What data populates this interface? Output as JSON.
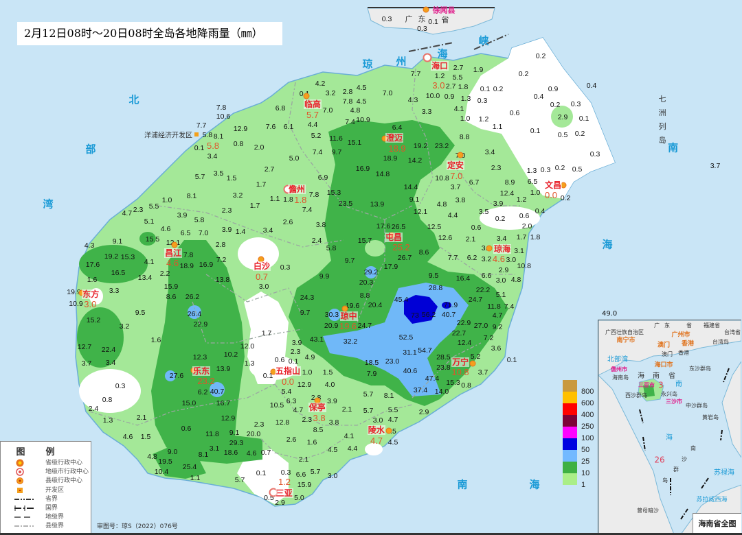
{
  "title": "2月12日08时～20日08时全岛各地降雨量（㎜）",
  "colors": {
    "sea": "#c9e5f6",
    "level_1_10": "#a4e898",
    "level_10_25": "#40b349",
    "level_25_50": "#70b8f8",
    "level_50_100": "#0000d6",
    "no_rain": "#ffffff"
  },
  "color_scale": {
    "labels": [
      "800",
      "600",
      "400",
      "250",
      "100",
      "50",
      "25",
      "10",
      "1"
    ],
    "colors": [
      "#c9993e",
      "#ffc000",
      "#ff0000",
      "#7d0038",
      "#ff00ff",
      "#0000e0",
      "#73b9ff",
      "#3eb043",
      "#aaee88"
    ]
  },
  "sea_labels": {
    "beibuwan": [
      "北",
      "部",
      "湾"
    ],
    "qiongzhou": [
      "琼",
      "州",
      "海",
      "峡"
    ],
    "nanhai": [
      "南",
      "海",
      "南",
      "海"
    ],
    "qizhou": "七洲列岛"
  },
  "neighbor": {
    "province": [
      "广",
      "东",
      "省"
    ],
    "county": "徐闻县"
  },
  "devzone": {
    "name": "洋浦经济开发区",
    "value": "5.8"
  },
  "cities": [
    {
      "name": "海口",
      "value": "3.0",
      "type": "pref"
    },
    {
      "name": "临高",
      "value": "5.7",
      "type": "county"
    },
    {
      "name": "澄迈",
      "value": "18.9",
      "type": "county"
    },
    {
      "name": "定安",
      "value": "7.0",
      "type": "county"
    },
    {
      "name": "文昌",
      "value": "0.0",
      "type": "county"
    },
    {
      "name": "儋州",
      "value": "1.8",
      "type": "pref"
    },
    {
      "name": "屯昌",
      "value": "25.2",
      "type": "county"
    },
    {
      "name": "琼海",
      "value": "4.6",
      "type": "county"
    },
    {
      "name": "昌江",
      "value": "4.6",
      "type": "county"
    },
    {
      "name": "白沙",
      "value": "0.7",
      "type": "county"
    },
    {
      "name": "东方",
      "value": "3.0",
      "type": "county"
    },
    {
      "name": "琼中",
      "value": "19.6",
      "type": "county"
    },
    {
      "name": "万宁",
      "value": "10.8",
      "type": "county"
    },
    {
      "name": "乐东",
      "value": "23.2",
      "type": "county"
    },
    {
      "name": "五指山",
      "value": "0.0",
      "type": "county"
    },
    {
      "name": "保亭",
      "value": "3.8",
      "type": "county"
    },
    {
      "name": "陵水",
      "value": "4.7",
      "type": "county"
    },
    {
      "name": "三亚",
      "value": "1.2",
      "type": "pref"
    }
  ],
  "stations": [
    "0.3",
    "0.1",
    "0.3",
    "0.1",
    "4.2",
    "3.2",
    "2.8",
    "4.5",
    "7.0",
    "7.8",
    "4.5",
    "6.8",
    "7.0",
    "4.4",
    "4.8",
    "4.3",
    "3.3",
    "5.2",
    "11.6",
    "15.1",
    "9.7",
    "7.4",
    "5.0",
    "10.9",
    "7.4",
    "6.4",
    "18.9",
    "19.2",
    "23.2",
    "14.2",
    "16.9",
    "14.8",
    "8.8",
    "7.0",
    "7.7",
    "1.2",
    "2.7",
    "5.5",
    "1.9",
    "10.0",
    "2.7",
    "1.8",
    "0.9",
    "1.3",
    "4.1",
    "1.0",
    "1.2",
    "1.1",
    "0.2",
    "0.2",
    "0.1",
    "0.2",
    "0.3",
    "0.4",
    "0.9",
    "0.2",
    "0.3",
    "0.6",
    "2.9",
    "0.1",
    "0.1",
    "0.5",
    "0.2",
    "0.3",
    "1.3",
    "0.3",
    "0.2",
    "0.5",
    "0.2",
    "0.4",
    "0.2",
    "0.6",
    "2.0",
    "1.7",
    "1.8",
    "0.4",
    "3.7",
    "3.4",
    "2.3",
    "6.7",
    "3.7",
    "10.8",
    "8.9",
    "6.5",
    "12.4",
    "1.0",
    "1.2",
    "3.9",
    "3.8",
    "4.8",
    "4.4",
    "3.5",
    "0.6",
    "12.5",
    "12.6",
    "2.1",
    "3.4",
    "3.6",
    "3.0",
    "3.2",
    "7.7",
    "6.2",
    "3.1",
    "10.8",
    "2.9",
    "3.0",
    "4.8",
    "6.6",
    "16.4",
    "22.2",
    "5.1",
    "24.7",
    "11.8",
    "7.4",
    "4.7",
    "9.2",
    "22.9",
    "27.0",
    "22.7",
    "7.2",
    "12.4",
    "3.6",
    "0.1",
    "28.5",
    "5.2",
    "23.8",
    "15.3",
    "3.7",
    "0.8",
    "14.0",
    "37.4",
    "47.4",
    "40.6",
    "31.1",
    "54.7",
    "52.5",
    "23.0",
    "18.5",
    "7.9",
    "32.2",
    "43.1",
    "20.9",
    "24.7",
    "19.6",
    "30.3",
    "20.4",
    "8.8",
    "20.3",
    "29.2",
    "9.9",
    "24.3",
    "9.7",
    "45.4",
    "73",
    "56.2",
    "40.7",
    "71.9",
    "28.8",
    "9.5",
    "17.9",
    "26.7",
    "9.7",
    "8.6",
    "17.6",
    "26.5",
    "15.7",
    "7.8",
    "10.6",
    "12.9",
    "7.6",
    "6.1",
    "7.7",
    "5.8",
    "8.1",
    "0.8",
    "2.0",
    "0.1",
    "3.4",
    "5.7",
    "3.5",
    "1.5",
    "2.7",
    "1.7",
    "6.9",
    "15.3",
    "23.5",
    "7.8",
    "7.4",
    "1.1",
    "1.8",
    "8.1",
    "3.2",
    "1.7",
    "1.0",
    "2.3",
    "5.5",
    "2.3",
    "3.9",
    "5.8",
    "5.1",
    "4.6",
    "6.5",
    "7.0",
    "3.9",
    "1.4",
    "3.4",
    "2.6",
    "3.8",
    "2.4",
    "5.8",
    "13.9",
    "9.1",
    "14.4",
    "12.1",
    "4.7",
    "15.5",
    "12.1",
    "9.1",
    "4.3",
    "19.2",
    "15.3",
    "4.1",
    "17.6",
    "16.5",
    "2.2",
    "7.8",
    "18.9",
    "16.9",
    "7.2",
    "2.8",
    "13.8",
    "1.6",
    "13.4",
    "15.9",
    "8.6",
    "26.2",
    "3.3",
    "19.9",
    "10.9",
    "9.5",
    "26.4",
    "22.9",
    "15.2",
    "3.2",
    "1.6",
    "12.7",
    "22.4",
    "3.7",
    "3.4",
    "12.3",
    "27.6",
    "13.9",
    "6.2",
    "40.7",
    "10.2",
    "12.0",
    "1.3",
    "0.1",
    "0.6",
    "1.7",
    "3.0",
    "0.3",
    "0.3",
    "0.8",
    "2.4",
    "1.3",
    "2.1",
    "4.6",
    "1.5",
    "15.0",
    "16.7",
    "12.9",
    "2.3",
    "0.6",
    "11.8",
    "9.1",
    "20.0",
    "29.3",
    "3.1",
    "18.6",
    "4.6",
    "0.7",
    "4.8",
    "9.0",
    "19.5",
    "25.4",
    "8.1",
    "10.4",
    "1.1",
    "0.1",
    "5.7",
    "1.0",
    "1.5",
    "5.4",
    "12.9",
    "4.0",
    "6.3",
    "2.8",
    "3.9",
    "10.5",
    "4.7",
    "2.3",
    "2.1",
    "5.7",
    "5.5",
    "12.8",
    "3.8",
    "8.5",
    "3.0",
    "4.7",
    "3.5",
    "4.1",
    "4.5",
    "2.6",
    "1.6",
    "4.5",
    "4.4",
    "2.1",
    "6.6",
    "5.7",
    "3.0",
    "0.3",
    "15.9",
    "2.9",
    "0.5",
    "5.0",
    "5.7",
    "8.1",
    "2.9",
    "3.9",
    "2.3",
    "4.9",
    "0.1"
  ],
  "extra_value": "49.0",
  "legend": {
    "title": "图例",
    "items": [
      {
        "label": "省级行政中心",
        "icon": "star-circle-icon"
      },
      {
        "label": "地级市行政中心",
        "icon": "double-circle-icon"
      },
      {
        "label": "县级行政中心",
        "icon": "dot-circle-icon"
      },
      {
        "label": "开发区",
        "icon": "square-dot-icon"
      },
      {
        "label": "省界",
        "icon": "dash-dot-dot-line"
      },
      {
        "label": "国界",
        "icon": "tick-dash-line"
      },
      {
        "label": "地级界",
        "icon": "long-dash-line"
      },
      {
        "label": "县级界",
        "icon": "dash-dot-line"
      }
    ]
  },
  "approval": "审图号：琼S（2022）076号",
  "inset": {
    "title": "海南省全图",
    "regions": [
      "广西壮族自治区",
      "广",
      "东",
      "省",
      "福建省",
      "台湾省",
      "台湾岛",
      "香港",
      "澳门",
      "海南岛",
      "海",
      "南",
      "省",
      "西沙群岛",
      "永兴岛",
      "中沙群岛",
      "东沙群岛",
      "黄岩岛",
      "南",
      "沙",
      "群",
      "岛",
      "曾母暗沙"
    ],
    "cities_orange": [
      "南宁市",
      "广州市",
      "澳门",
      "香港",
      "海口市"
    ],
    "cities_magenta": [
      "儋州市",
      "三亚市",
      "三沙市"
    ],
    "seas": [
      "北部湾",
      "南",
      "海",
      "苏禄海",
      "苏拉威西海"
    ],
    "values": [
      "3",
      "26"
    ]
  }
}
